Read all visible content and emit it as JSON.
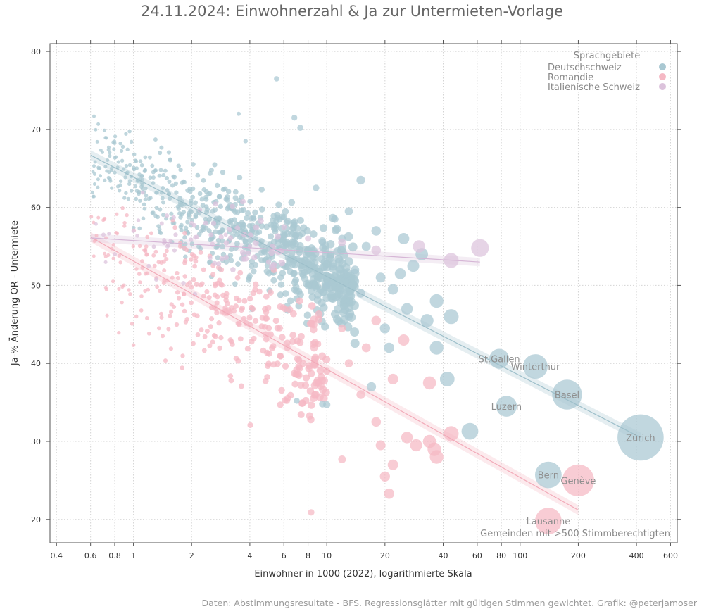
{
  "chart_data": {
    "type": "scatter",
    "title": "24.11.2024: Einwohnerzahl & Ja zur Untermieten-Vorlage",
    "xlabel": "Einwohner in 1000 (2022), logarithmierte Skala",
    "ylabel": "Ja-% Änderung OR - Untermiete",
    "xscale": "log",
    "xlim": [
      0.37,
      650
    ],
    "ylim": [
      17,
      81
    ],
    "xticks": [
      {
        "v": 0.4,
        "label": "0.4"
      },
      {
        "v": 0.6,
        "label": "0.6"
      },
      {
        "v": 0.8,
        "label": "0.8"
      },
      {
        "v": 1,
        "label": "1"
      },
      {
        "v": 2,
        "label": "2"
      },
      {
        "v": 4,
        "label": "4"
      },
      {
        "v": 6,
        "label": "6"
      },
      {
        "v": 8,
        "label": "8"
      },
      {
        "v": 10,
        "label": "10"
      },
      {
        "v": 20,
        "label": "20"
      },
      {
        "v": 40,
        "label": "40"
      },
      {
        "v": 60,
        "label": "60"
      },
      {
        "v": 80,
        "label": "80"
      },
      {
        "v": 100,
        "label": "100"
      },
      {
        "v": 200,
        "label": "200"
      },
      {
        "v": 400,
        "label": "400"
      },
      {
        "v": 600,
        "label": "600"
      }
    ],
    "yticks": [
      {
        "v": 20,
        "label": "20"
      },
      {
        "v": 30,
        "label": "30"
      },
      {
        "v": 40,
        "label": "40"
      },
      {
        "v": 50,
        "label": "50"
      },
      {
        "v": 60,
        "label": "60"
      },
      {
        "v": 70,
        "label": "70"
      },
      {
        "v": 80,
        "label": "80"
      }
    ],
    "legend": {
      "title": "Sprachgebiete",
      "placement": "top-right",
      "entries": [
        {
          "name": "Deutschschweiz",
          "color": "#a9c8d2"
        },
        {
          "name": "Romandie",
          "color": "#f5b8c4"
        },
        {
          "name": "Italienische Schweiz",
          "color": "#dcc3dc"
        }
      ]
    },
    "note": "Gemeinden mit >500 Stimmberechtigten",
    "series": [
      {
        "name": "Deutschschweiz",
        "color": "#a9c8d2",
        "trend": [
          {
            "x": 0.6,
            "y": 66.7
          },
          {
            "x": 420,
            "y": 30.5
          }
        ],
        "points": [
          {
            "x": 420,
            "y": 30.5,
            "label": "Zürich"
          },
          {
            "x": 175,
            "y": 36.0,
            "label": "Basel"
          },
          {
            "x": 120,
            "y": 39.6,
            "label": "Winterthur"
          },
          {
            "x": 78,
            "y": 40.6,
            "label": "St.Gallen"
          },
          {
            "x": 85,
            "y": 34.5,
            "label": "Luzern"
          },
          {
            "x": 140,
            "y": 25.7,
            "label": "Bern"
          },
          {
            "x": 55,
            "y": 31.3
          },
          {
            "x": 44,
            "y": 46.0
          },
          {
            "x": 42,
            "y": 38.0
          },
          {
            "x": 37,
            "y": 48.0
          },
          {
            "x": 37,
            "y": 42.0
          },
          {
            "x": 33,
            "y": 45.5
          },
          {
            "x": 31,
            "y": 54.0
          },
          {
            "x": 28,
            "y": 52.5
          },
          {
            "x": 26,
            "y": 47.0
          },
          {
            "x": 25,
            "y": 56.0
          },
          {
            "x": 24,
            "y": 51.5
          },
          {
            "x": 22,
            "y": 49.5
          },
          {
            "x": 21,
            "y": 42.0
          },
          {
            "x": 20,
            "y": 44.5
          },
          {
            "x": 19,
            "y": 51.0
          },
          {
            "x": 18,
            "y": 57.0
          },
          {
            "x": 17,
            "y": 37.0
          },
          {
            "x": 16,
            "y": 55.0
          },
          {
            "x": 15,
            "y": 49.0
          },
          {
            "x": 14,
            "y": 52.0
          },
          {
            "x": 13,
            "y": 46.0
          },
          {
            "x": 15,
            "y": 63.5
          },
          {
            "x": 11,
            "y": 58.5
          },
          {
            "x": 12,
            "y": 56.0
          },
          {
            "x": 10,
            "y": 50.0
          },
          {
            "x": 9.5,
            "y": 55.5
          },
          {
            "x": 13,
            "y": 59.5
          },
          {
            "x": 5.5,
            "y": 76.5
          },
          {
            "x": 3.5,
            "y": 72.0
          },
          {
            "x": 6.8,
            "y": 71.5
          },
          {
            "x": 7.3,
            "y": 70.2
          },
          {
            "x": 3.8,
            "y": 68.5
          },
          {
            "x": 8.8,
            "y": 62.5
          },
          {
            "x": 9.5,
            "y": 34.8
          },
          {
            "x": 10,
            "y": 34.7
          },
          {
            "x": 7,
            "y": 35.2
          }
        ]
      },
      {
        "name": "Romandie",
        "color": "#f5b8c4",
        "trend": [
          {
            "x": 0.6,
            "y": 56.2
          },
          {
            "x": 200,
            "y": 21.2
          }
        ],
        "points": [
          {
            "x": 200,
            "y": 25.0,
            "label": "Genève"
          },
          {
            "x": 140,
            "y": 19.8,
            "label": "Lausanne"
          },
          {
            "x": 44,
            "y": 31.0
          },
          {
            "x": 37,
            "y": 28.0
          },
          {
            "x": 36,
            "y": 29.0
          },
          {
            "x": 34,
            "y": 30.0
          },
          {
            "x": 34,
            "y": 37.5
          },
          {
            "x": 29,
            "y": 29.5
          },
          {
            "x": 26,
            "y": 30.5
          },
          {
            "x": 22,
            "y": 27.0
          },
          {
            "x": 20,
            "y": 25.5
          },
          {
            "x": 21,
            "y": 23.3
          },
          {
            "x": 19,
            "y": 29.5
          },
          {
            "x": 18,
            "y": 32.5
          },
          {
            "x": 25,
            "y": 43.0
          },
          {
            "x": 12,
            "y": 27.7
          },
          {
            "x": 8.3,
            "y": 20.9
          },
          {
            "x": 10,
            "y": 39.0
          },
          {
            "x": 15,
            "y": 36.0
          },
          {
            "x": 22,
            "y": 38.0
          },
          {
            "x": 16,
            "y": 42.0
          },
          {
            "x": 9,
            "y": 42.5
          },
          {
            "x": 12,
            "y": 44.5
          },
          {
            "x": 18,
            "y": 45.5
          },
          {
            "x": 7,
            "y": 38.5
          },
          {
            "x": 13,
            "y": 40.0
          }
        ]
      },
      {
        "name": "Italienische Schweiz",
        "color": "#dcc3dc",
        "trend": [
          {
            "x": 0.6,
            "y": 56.1
          },
          {
            "x": 62,
            "y": 53.0
          }
        ],
        "points": [
          {
            "x": 62,
            "y": 54.8
          },
          {
            "x": 44,
            "y": 53.2
          },
          {
            "x": 30,
            "y": 55.0
          },
          {
            "x": 18,
            "y": 54.5
          },
          {
            "x": 12,
            "y": 55.5
          },
          {
            "x": 8,
            "y": 56.0
          },
          {
            "x": 6,
            "y": 57.5
          },
          {
            "x": 5,
            "y": 53.0
          },
          {
            "x": 4,
            "y": 55.0
          },
          {
            "x": 3,
            "y": 56.5
          },
          {
            "x": 2.5,
            "y": 53.5
          },
          {
            "x": 2,
            "y": 58.0
          },
          {
            "x": 1.5,
            "y": 55.0
          },
          {
            "x": 1.2,
            "y": 52.5
          },
          {
            "x": 1.0,
            "y": 57.0
          },
          {
            "x": 0.8,
            "y": 54.0
          },
          {
            "x": 0.7,
            "y": 56.5
          }
        ]
      }
    ]
  },
  "caption": "Daten: Abstimmungsresultate - BFS. Regressionsglätter mit gültigen Stimmen gewichtet. Grafik: @peterjamoser"
}
